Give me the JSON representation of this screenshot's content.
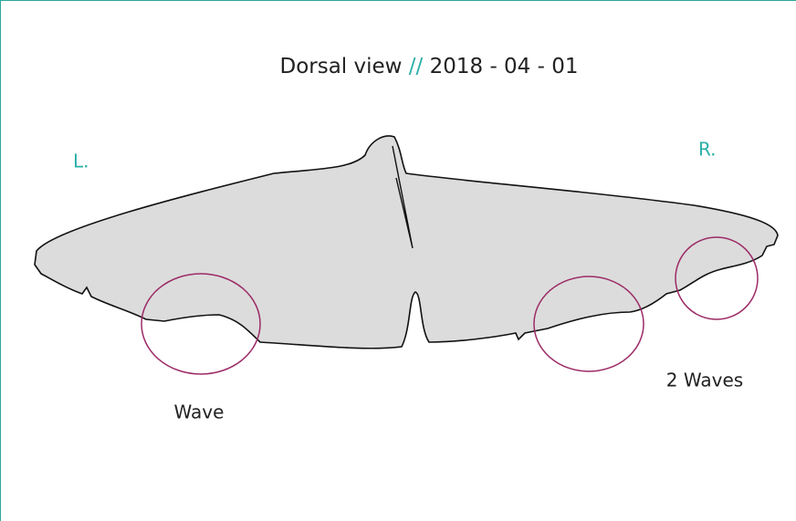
{
  "header": {
    "view": "Dorsal view",
    "separator": "//",
    "date": "2018 - 04 - 01"
  },
  "sides": {
    "left": "L.",
    "right": "R."
  },
  "annotations": {
    "left": "Wave",
    "right": "2 Waves"
  }
}
